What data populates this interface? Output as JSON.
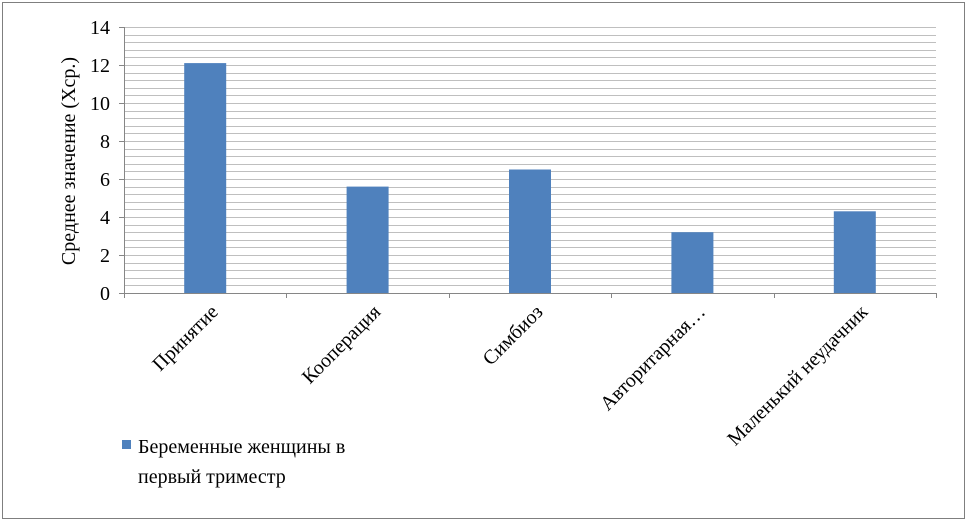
{
  "chart_data": {
    "type": "bar",
    "categories": [
      "Принятие",
      "Кооперация",
      "Симбиоз",
      "Авторитарная…",
      "Маленький неудачник"
    ],
    "series": [
      {
        "name": "Беременные женщины в первый триместр",
        "values": [
          12.1,
          5.6,
          6.5,
          3.2,
          4.3
        ],
        "color": "#4f81bd"
      }
    ],
    "ylabel": "Среднее значение (Хср.)",
    "ylim": [
      0,
      14
    ],
    "yticks": [
      "0",
      "2",
      "4",
      "6",
      "8",
      "10",
      "12",
      "14"
    ],
    "grid": true,
    "legend_position": "bottom-left"
  }
}
